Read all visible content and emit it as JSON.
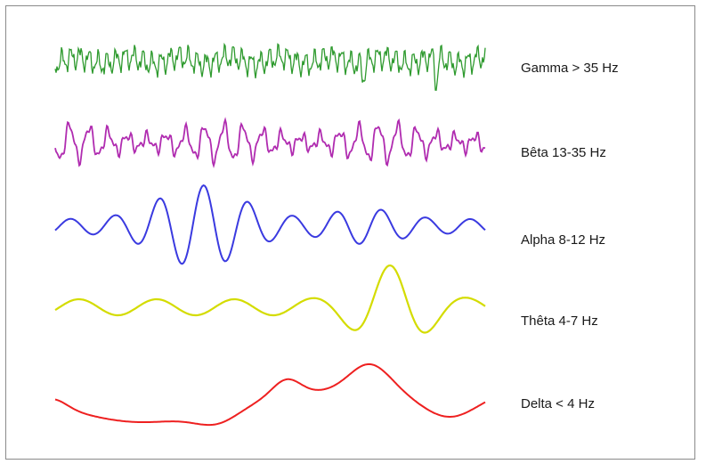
{
  "waves": [
    {
      "id": "gamma",
      "label": "Gamma > 35 Hz",
      "color": "#2e9a2e"
    },
    {
      "id": "beta",
      "label": "Bêta 13-35 Hz",
      "color": "#b02cb0"
    },
    {
      "id": "alpha",
      "label": "Alpha 8-12 Hz",
      "color": "#3a3ae0"
    },
    {
      "id": "theta",
      "label": "Thêta 4-7 Hz",
      "color": "#d4dc00"
    },
    {
      "id": "delta",
      "label": "Delta < 4 Hz",
      "color": "#ee2020"
    }
  ]
}
